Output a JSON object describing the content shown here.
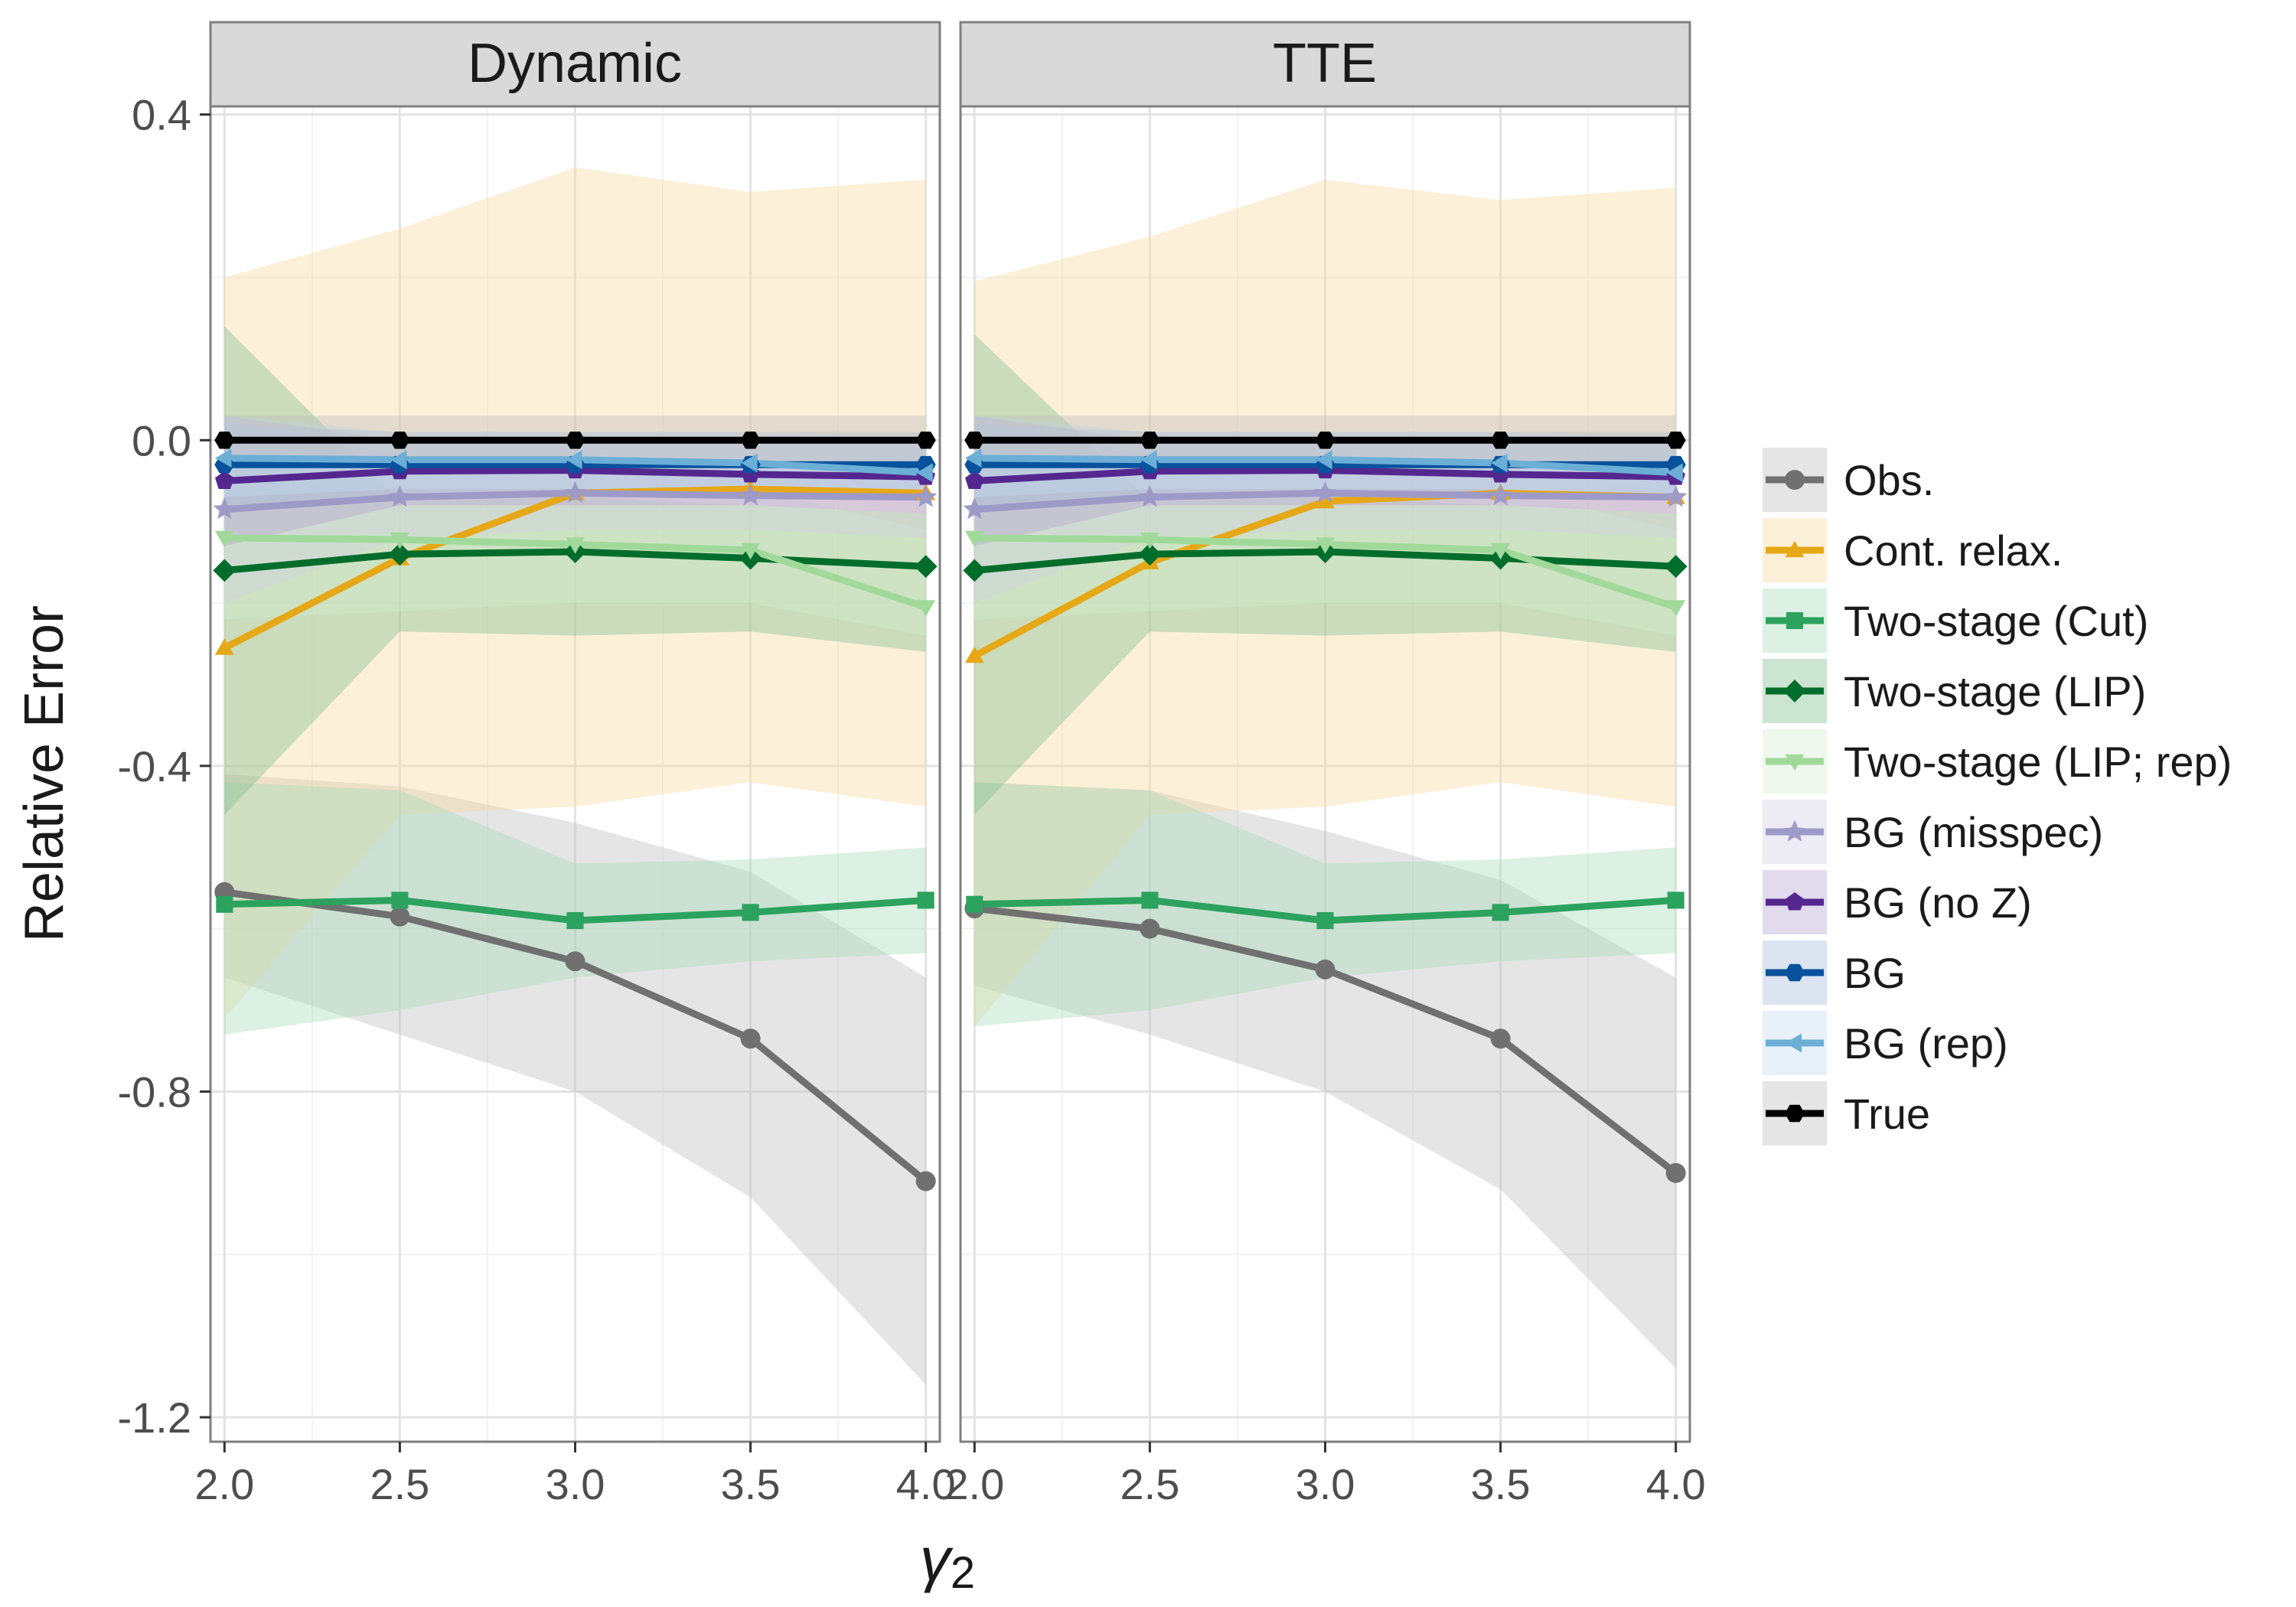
{
  "chart_data": {
    "type": "line",
    "x": [
      2.0,
      2.5,
      3.0,
      3.5,
      4.0
    ],
    "x_tick_labels": [
      "2.0",
      "2.5",
      "3.0",
      "3.5",
      "4.0"
    ],
    "y_ticks": [
      0.4,
      0.0,
      -0.4,
      -0.8,
      -1.2
    ],
    "y_tick_labels": [
      "0.4",
      "0.0",
      "-0.4",
      "-0.8",
      "-1.2"
    ],
    "xlim": [
      1.96,
      4.04
    ],
    "ylim": [
      -1.23,
      0.41
    ],
    "xlabel": "γ",
    "xlabel_sub": "2",
    "ylabel": "Relative Error",
    "legend_position": "right",
    "panels": [
      {
        "title": "Dynamic",
        "series": [
          {
            "name": "Obs.",
            "color": "#707070",
            "band": "#bdbdbd",
            "marker": "circle",
            "values": [
              -0.555,
              -0.585,
              -0.64,
              -0.735,
              -0.91
            ],
            "lower": [
              -0.66,
              -0.73,
              -0.8,
              -0.93,
              -1.16
            ],
            "upper": [
              -0.41,
              -0.425,
              -0.47,
              -0.53,
              -0.66
            ]
          },
          {
            "name": "Cont. relax.",
            "color": "#E6A817",
            "band": "#f7d9a0",
            "marker": "triangle",
            "values": [
              -0.255,
              -0.145,
              -0.065,
              -0.06,
              -0.065
            ],
            "lower": [
              -0.71,
              -0.46,
              -0.45,
              -0.42,
              -0.45
            ],
            "upper": [
              0.2,
              0.26,
              0.335,
              0.305,
              0.32
            ]
          },
          {
            "name": "Two-stage (Cut)",
            "color": "#2CA25F",
            "band": "#a8dbb8",
            "marker": "square",
            "values": [
              -0.57,
              -0.565,
              -0.59,
              -0.58,
              -0.565
            ],
            "lower": [
              -0.73,
              -0.7,
              -0.66,
              -0.64,
              -0.63
            ],
            "upper": [
              -0.42,
              -0.43,
              -0.52,
              -0.515,
              -0.5
            ]
          },
          {
            "name": "Two-stage (LIP)",
            "color": "#006D2C",
            "band": "#7fbf8f",
            "marker": "diamond",
            "values": [
              -0.16,
              -0.14,
              -0.137,
              -0.145,
              -0.155
            ],
            "lower": [
              -0.46,
              -0.235,
              -0.24,
              -0.235,
              -0.26
            ],
            "upper": [
              0.14,
              -0.075,
              -0.07,
              -0.08,
              -0.09
            ]
          },
          {
            "name": "Two-stage (LIP; rep)",
            "color": "#A1D99B",
            "band": "#d5eecf",
            "marker": "triangle-down",
            "values": [
              -0.12,
              -0.122,
              -0.128,
              -0.135,
              -0.205
            ],
            "lower": [
              -0.22,
              -0.21,
              -0.2,
              -0.2,
              -0.24
            ],
            "upper": [
              -0.02,
              -0.04,
              -0.05,
              -0.06,
              -0.11
            ]
          },
          {
            "name": "BG (misspec)",
            "color": "#9E9AC8",
            "band": "#d2d0e6",
            "marker": "star",
            "values": [
              -0.085,
              -0.07,
              -0.065,
              -0.068,
              -0.07
            ],
            "lower": [
              -0.2,
              -0.12,
              -0.11,
              -0.11,
              -0.12
            ],
            "upper": [
              0.03,
              -0.02,
              -0.02,
              -0.03,
              -0.02
            ]
          },
          {
            "name": "BG (no Z)",
            "color": "#54278F",
            "band": "#b7a3d1",
            "marker": "pentagon",
            "values": [
              -0.05,
              -0.038,
              -0.037,
              -0.042,
              -0.045
            ],
            "lower": [
              -0.13,
              -0.08,
              -0.08,
              -0.08,
              -0.09
            ],
            "upper": [
              0.03,
              0.0,
              0.0,
              0.0,
              0.0
            ]
          },
          {
            "name": "BG",
            "color": "#08519C",
            "band": "#a6bcd9",
            "marker": "hexagon",
            "values": [
              -0.03,
              -0.03,
              -0.03,
              -0.03,
              -0.03
            ],
            "lower": [
              -0.08,
              -0.07,
              -0.07,
              -0.07,
              -0.07
            ],
            "upper": [
              0.02,
              0.01,
              0.01,
              0.01,
              0.01
            ]
          },
          {
            "name": "BG (rep)",
            "color": "#6BAED6",
            "band": "#c6dbef",
            "marker": "triangle-left",
            "values": [
              -0.022,
              -0.024,
              -0.024,
              -0.028,
              -0.04
            ],
            "lower": [
              -0.07,
              -0.06,
              -0.06,
              -0.06,
              -0.07
            ],
            "upper": [
              0.03,
              0.01,
              0.01,
              0.01,
              0.0
            ]
          },
          {
            "name": "True",
            "color": "#000000",
            "band": "#bdbdbd",
            "marker": "hexagon",
            "values": [
              0.0,
              0.0,
              0.0,
              0.0,
              0.0
            ],
            "lower": [
              -0.03,
              -0.03,
              -0.03,
              -0.03,
              -0.03
            ],
            "upper": [
              0.03,
              0.03,
              0.03,
              0.03,
              0.03
            ]
          }
        ]
      },
      {
        "title": "TTE",
        "series": [
          {
            "name": "Obs.",
            "color": "#707070",
            "band": "#bdbdbd",
            "marker": "circle",
            "values": [
              -0.575,
              -0.6,
              -0.65,
              -0.735,
              -0.9
            ],
            "lower": [
              -0.67,
              -0.73,
              -0.8,
              -0.92,
              -1.14
            ],
            "upper": [
              -0.42,
              -0.43,
              -0.48,
              -0.54,
              -0.66
            ]
          },
          {
            "name": "Cont. relax.",
            "color": "#E6A817",
            "band": "#f7d9a0",
            "marker": "triangle",
            "values": [
              -0.265,
              -0.15,
              -0.075,
              -0.065,
              -0.07
            ],
            "lower": [
              -0.72,
              -0.46,
              -0.45,
              -0.42,
              -0.45
            ],
            "upper": [
              0.195,
              0.25,
              0.32,
              0.295,
              0.31
            ]
          },
          {
            "name": "Two-stage (Cut)",
            "color": "#2CA25F",
            "band": "#a8dbb8",
            "marker": "square",
            "values": [
              -0.57,
              -0.565,
              -0.59,
              -0.58,
              -0.565
            ],
            "lower": [
              -0.72,
              -0.7,
              -0.66,
              -0.64,
              -0.63
            ],
            "upper": [
              -0.42,
              -0.43,
              -0.52,
              -0.515,
              -0.5
            ]
          },
          {
            "name": "Two-stage (LIP)",
            "color": "#006D2C",
            "band": "#7fbf8f",
            "marker": "diamond",
            "values": [
              -0.16,
              -0.14,
              -0.137,
              -0.145,
              -0.155
            ],
            "lower": [
              -0.46,
              -0.235,
              -0.24,
              -0.235,
              -0.26
            ],
            "upper": [
              0.13,
              -0.075,
              -0.07,
              -0.08,
              -0.09
            ]
          },
          {
            "name": "Two-stage (LIP; rep)",
            "color": "#A1D99B",
            "band": "#d5eecf",
            "marker": "triangle-down",
            "values": [
              -0.12,
              -0.122,
              -0.128,
              -0.135,
              -0.205
            ],
            "lower": [
              -0.22,
              -0.21,
              -0.2,
              -0.2,
              -0.24
            ],
            "upper": [
              -0.02,
              -0.04,
              -0.05,
              -0.06,
              -0.11
            ]
          },
          {
            "name": "BG (misspec)",
            "color": "#9E9AC8",
            "band": "#d2d0e6",
            "marker": "star",
            "values": [
              -0.085,
              -0.07,
              -0.065,
              -0.068,
              -0.07
            ],
            "lower": [
              -0.2,
              -0.12,
              -0.11,
              -0.11,
              -0.12
            ],
            "upper": [
              0.03,
              -0.02,
              -0.02,
              -0.03,
              -0.02
            ]
          },
          {
            "name": "BG (no Z)",
            "color": "#54278F",
            "band": "#b7a3d1",
            "marker": "pentagon",
            "values": [
              -0.05,
              -0.038,
              -0.037,
              -0.042,
              -0.045
            ],
            "lower": [
              -0.13,
              -0.08,
              -0.08,
              -0.08,
              -0.09
            ],
            "upper": [
              0.03,
              0.0,
              0.0,
              0.0,
              0.0
            ]
          },
          {
            "name": "BG",
            "color": "#08519C",
            "band": "#a6bcd9",
            "marker": "hexagon",
            "values": [
              -0.03,
              -0.03,
              -0.03,
              -0.03,
              -0.03
            ],
            "lower": [
              -0.08,
              -0.07,
              -0.07,
              -0.07,
              -0.07
            ],
            "upper": [
              0.02,
              0.01,
              0.01,
              0.01,
              0.01
            ]
          },
          {
            "name": "BG (rep)",
            "color": "#6BAED6",
            "band": "#c6dbef",
            "marker": "triangle-left",
            "values": [
              -0.022,
              -0.024,
              -0.024,
              -0.028,
              -0.04
            ],
            "lower": [
              -0.07,
              -0.06,
              -0.06,
              -0.06,
              -0.07
            ],
            "upper": [
              0.03,
              0.01,
              0.01,
              0.01,
              0.0
            ]
          },
          {
            "name": "True",
            "color": "#000000",
            "band": "#bdbdbd",
            "marker": "hexagon",
            "values": [
              0.0,
              0.0,
              0.0,
              0.0,
              0.0
            ],
            "lower": [
              -0.03,
              -0.03,
              -0.03,
              -0.03,
              -0.03
            ],
            "upper": [
              0.03,
              0.03,
              0.03,
              0.03,
              0.03
            ]
          }
        ]
      }
    ]
  }
}
